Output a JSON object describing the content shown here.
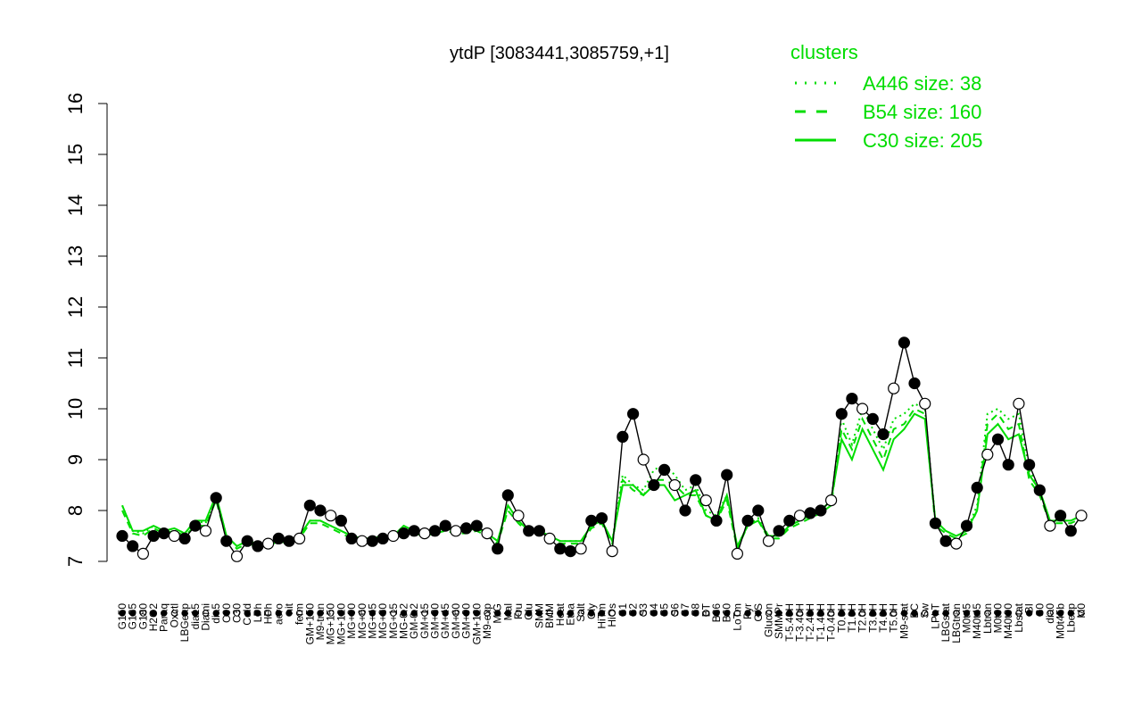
{
  "chart_data": {
    "type": "line",
    "title": "ytdP [3083441,3085759,+1]",
    "xlabel": "",
    "ylabel": "",
    "ylim": [
      7,
      16
    ],
    "yticks": [
      7,
      8,
      9,
      10,
      11,
      12,
      13,
      14,
      15,
      16
    ],
    "legend": {
      "title": "clusters",
      "placement": "top-right",
      "items": [
        {
          "label": "A446 size: 38",
          "style": "dotted"
        },
        {
          "label": "B54 size: 160",
          "style": "dashed"
        },
        {
          "label": "C30 size: 205",
          "style": "solid"
        }
      ]
    },
    "xtick_labels": [
      "G150",
      "G135",
      "G180",
      "H2O2",
      "Paraq",
      "Oxctl",
      "LBGexp",
      "dia15",
      "Diami",
      "dia5",
      "C90",
      "C30",
      "Cold",
      "LPh",
      "HPh",
      "aero",
      "nit",
      "ferm",
      "GM+150",
      "M9-tran",
      "MG+150",
      "MG+120",
      "MG+90",
      "MG+60",
      "MG+45",
      "MG+30",
      "MG+15",
      "MG-0.2",
      "GM-0.2",
      "GM+15",
      "GM+30",
      "GM+45",
      "GM+60",
      "GM+90",
      "GM+120",
      "M9-exp",
      "M/G",
      "Mal",
      "Fru",
      "Glu",
      "SMM",
      "BMM",
      "Heat",
      "Etha",
      "Salt",
      "Gly",
      "HiTm",
      "HiOs",
      "S1",
      "S2",
      "S3",
      "S4",
      "S5",
      "S6",
      "S7",
      "S8",
      "BT",
      "B36",
      "B60",
      "LoTm",
      "Pyr",
      "G/S",
      "Glucon",
      "SMMPr",
      "T-5.40H",
      "T-3.40H",
      "T-2.40H",
      "T-1.40H",
      "T-0.40H",
      "T0.0H",
      "T1.0H",
      "T2.0H",
      "T3.0H",
      "T4.0H",
      "T5.0H",
      "M9-stat",
      "BC",
      "Sw",
      "LPhT",
      "LBGstat",
      "LBGtran",
      "M0t45",
      "M40t45",
      "Lbtran",
      "M0t90",
      "M40t90",
      "Lbstat",
      "BI",
      "S0",
      "dia0",
      "M0t45b",
      "Lbexp",
      "M0"
    ],
    "series": [
      {
        "style": "points",
        "values": [
          7.5,
          7.3,
          7.15,
          7.5,
          7.55,
          7.5,
          7.45,
          7.7,
          7.6,
          8.25,
          7.4,
          7.1,
          7.4,
          7.3,
          7.35,
          7.45,
          7.4,
          7.45,
          8.1,
          8.0,
          7.9,
          7.8,
          7.45,
          7.4,
          7.4,
          7.45,
          7.5,
          7.55,
          7.6,
          7.55,
          7.6,
          7.7,
          7.6,
          7.65,
          7.7,
          7.55,
          7.25,
          8.3,
          7.9,
          7.6,
          7.6,
          7.45,
          7.25,
          7.2,
          7.25,
          7.8,
          7.85,
          7.2,
          9.45,
          9.9,
          9.0,
          8.5,
          8.8,
          8.5,
          8.0,
          8.6,
          8.2,
          7.8,
          8.7,
          7.15,
          7.8,
          8.0,
          7.4,
          7.6,
          7.8,
          7.9,
          7.95,
          8.0,
          8.2,
          9.9,
          10.2,
          10.0,
          9.8,
          9.5,
          10.4,
          11.3,
          10.5,
          10.1,
          7.75,
          7.4,
          7.35,
          7.7,
          8.45,
          9.1,
          9.4,
          8.9,
          10.1,
          8.9,
          8.4,
          7.7,
          7.9,
          7.6,
          7.9
        ]
      },
      {
        "style": "solid",
        "values": [
          8.1,
          7.6,
          7.6,
          7.7,
          7.6,
          7.65,
          7.55,
          7.8,
          7.8,
          8.3,
          7.5,
          7.3,
          7.4,
          7.35,
          7.35,
          7.45,
          7.4,
          7.5,
          7.8,
          7.8,
          7.7,
          7.6,
          7.5,
          7.45,
          7.45,
          7.5,
          7.5,
          7.7,
          7.6,
          7.55,
          7.6,
          7.65,
          7.6,
          7.6,
          7.65,
          7.55,
          7.4,
          8.1,
          7.8,
          7.6,
          7.6,
          7.5,
          7.4,
          7.4,
          7.4,
          7.7,
          7.8,
          7.4,
          8.5,
          8.5,
          8.3,
          8.5,
          8.5,
          8.2,
          8.3,
          8.4,
          7.9,
          7.8,
          8.3,
          7.3,
          7.7,
          7.8,
          7.5,
          7.5,
          7.7,
          7.8,
          7.9,
          8.0,
          8.2,
          9.4,
          9.0,
          9.6,
          9.2,
          8.8,
          9.4,
          9.6,
          9.9,
          9.8,
          7.8,
          7.6,
          7.5,
          7.6,
          8.0,
          9.5,
          9.7,
          9.4,
          9.5,
          8.7,
          8.4,
          7.8,
          7.8,
          7.8,
          7.9
        ]
      },
      {
        "style": "dashed",
        "values": [
          8.0,
          7.55,
          7.5,
          7.65,
          7.55,
          7.6,
          7.5,
          7.7,
          7.7,
          8.2,
          7.45,
          7.25,
          7.35,
          7.3,
          7.3,
          7.4,
          7.35,
          7.45,
          7.75,
          7.75,
          7.65,
          7.55,
          7.45,
          7.4,
          7.4,
          7.45,
          7.45,
          7.65,
          7.55,
          7.5,
          7.55,
          7.6,
          7.55,
          7.55,
          7.6,
          7.5,
          7.35,
          8.0,
          7.75,
          7.55,
          7.55,
          7.45,
          7.35,
          7.35,
          7.35,
          7.65,
          7.75,
          7.35,
          8.6,
          8.4,
          8.3,
          8.6,
          8.6,
          8.5,
          8.3,
          8.3,
          7.9,
          7.8,
          8.2,
          7.25,
          7.7,
          7.8,
          7.45,
          7.45,
          7.65,
          7.75,
          7.85,
          7.95,
          8.1,
          9.6,
          9.2,
          9.8,
          9.4,
          9.0,
          9.6,
          9.7,
          10.0,
          9.9,
          7.7,
          7.55,
          7.45,
          7.55,
          8.0,
          9.7,
          9.9,
          9.6,
          9.7,
          8.6,
          8.3,
          7.75,
          7.75,
          7.75,
          7.85
        ]
      },
      {
        "style": "dotted",
        "values": [
          8.1,
          7.6,
          7.55,
          7.7,
          7.6,
          7.65,
          7.55,
          7.8,
          7.75,
          8.3,
          7.5,
          7.3,
          7.4,
          7.35,
          7.35,
          7.45,
          7.4,
          7.5,
          7.8,
          7.8,
          7.7,
          7.6,
          7.5,
          7.45,
          7.45,
          7.5,
          7.5,
          7.7,
          7.6,
          7.55,
          7.6,
          7.65,
          7.6,
          7.6,
          7.65,
          7.55,
          7.4,
          8.1,
          7.8,
          7.6,
          7.6,
          7.5,
          7.4,
          7.4,
          7.4,
          7.7,
          7.8,
          7.4,
          8.7,
          8.5,
          8.4,
          8.8,
          8.9,
          8.7,
          8.4,
          8.5,
          8.0,
          7.9,
          8.3,
          7.3,
          7.7,
          7.85,
          7.5,
          7.5,
          7.7,
          7.8,
          7.9,
          8.0,
          8.2,
          9.8,
          9.3,
          10.0,
          9.6,
          9.2,
          9.8,
          9.9,
          10.1,
          10.0,
          7.8,
          7.6,
          7.5,
          7.6,
          8.1,
          9.9,
          10.0,
          9.8,
          9.9,
          8.8,
          8.4,
          7.8,
          7.8,
          7.8,
          7.9
        ]
      }
    ]
  }
}
